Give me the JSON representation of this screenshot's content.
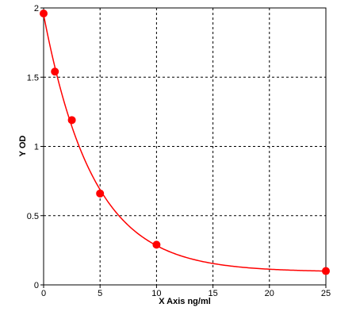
{
  "chart_data": {
    "type": "scatter",
    "xlabel": "X Axis ng/ml",
    "ylabel": "Y OD",
    "xlim": [
      0,
      25
    ],
    "ylim": [
      0,
      2
    ],
    "x_ticks": [
      0,
      5,
      10,
      15,
      20,
      25
    ],
    "y_ticks": [
      0,
      0.5,
      1,
      1.5,
      2
    ],
    "grid": true,
    "series": [
      {
        "values": [
          {
            "x": 0,
            "y": 1.96
          },
          {
            "x": 1,
            "y": 1.54
          },
          {
            "x": 2.5,
            "y": 1.19
          },
          {
            "x": 5,
            "y": 0.66
          },
          {
            "x": 10,
            "y": 0.29
          },
          {
            "x": 25,
            "y": 0.1
          }
        ],
        "color": "#ff0000",
        "fit_curve": true
      }
    ]
  }
}
